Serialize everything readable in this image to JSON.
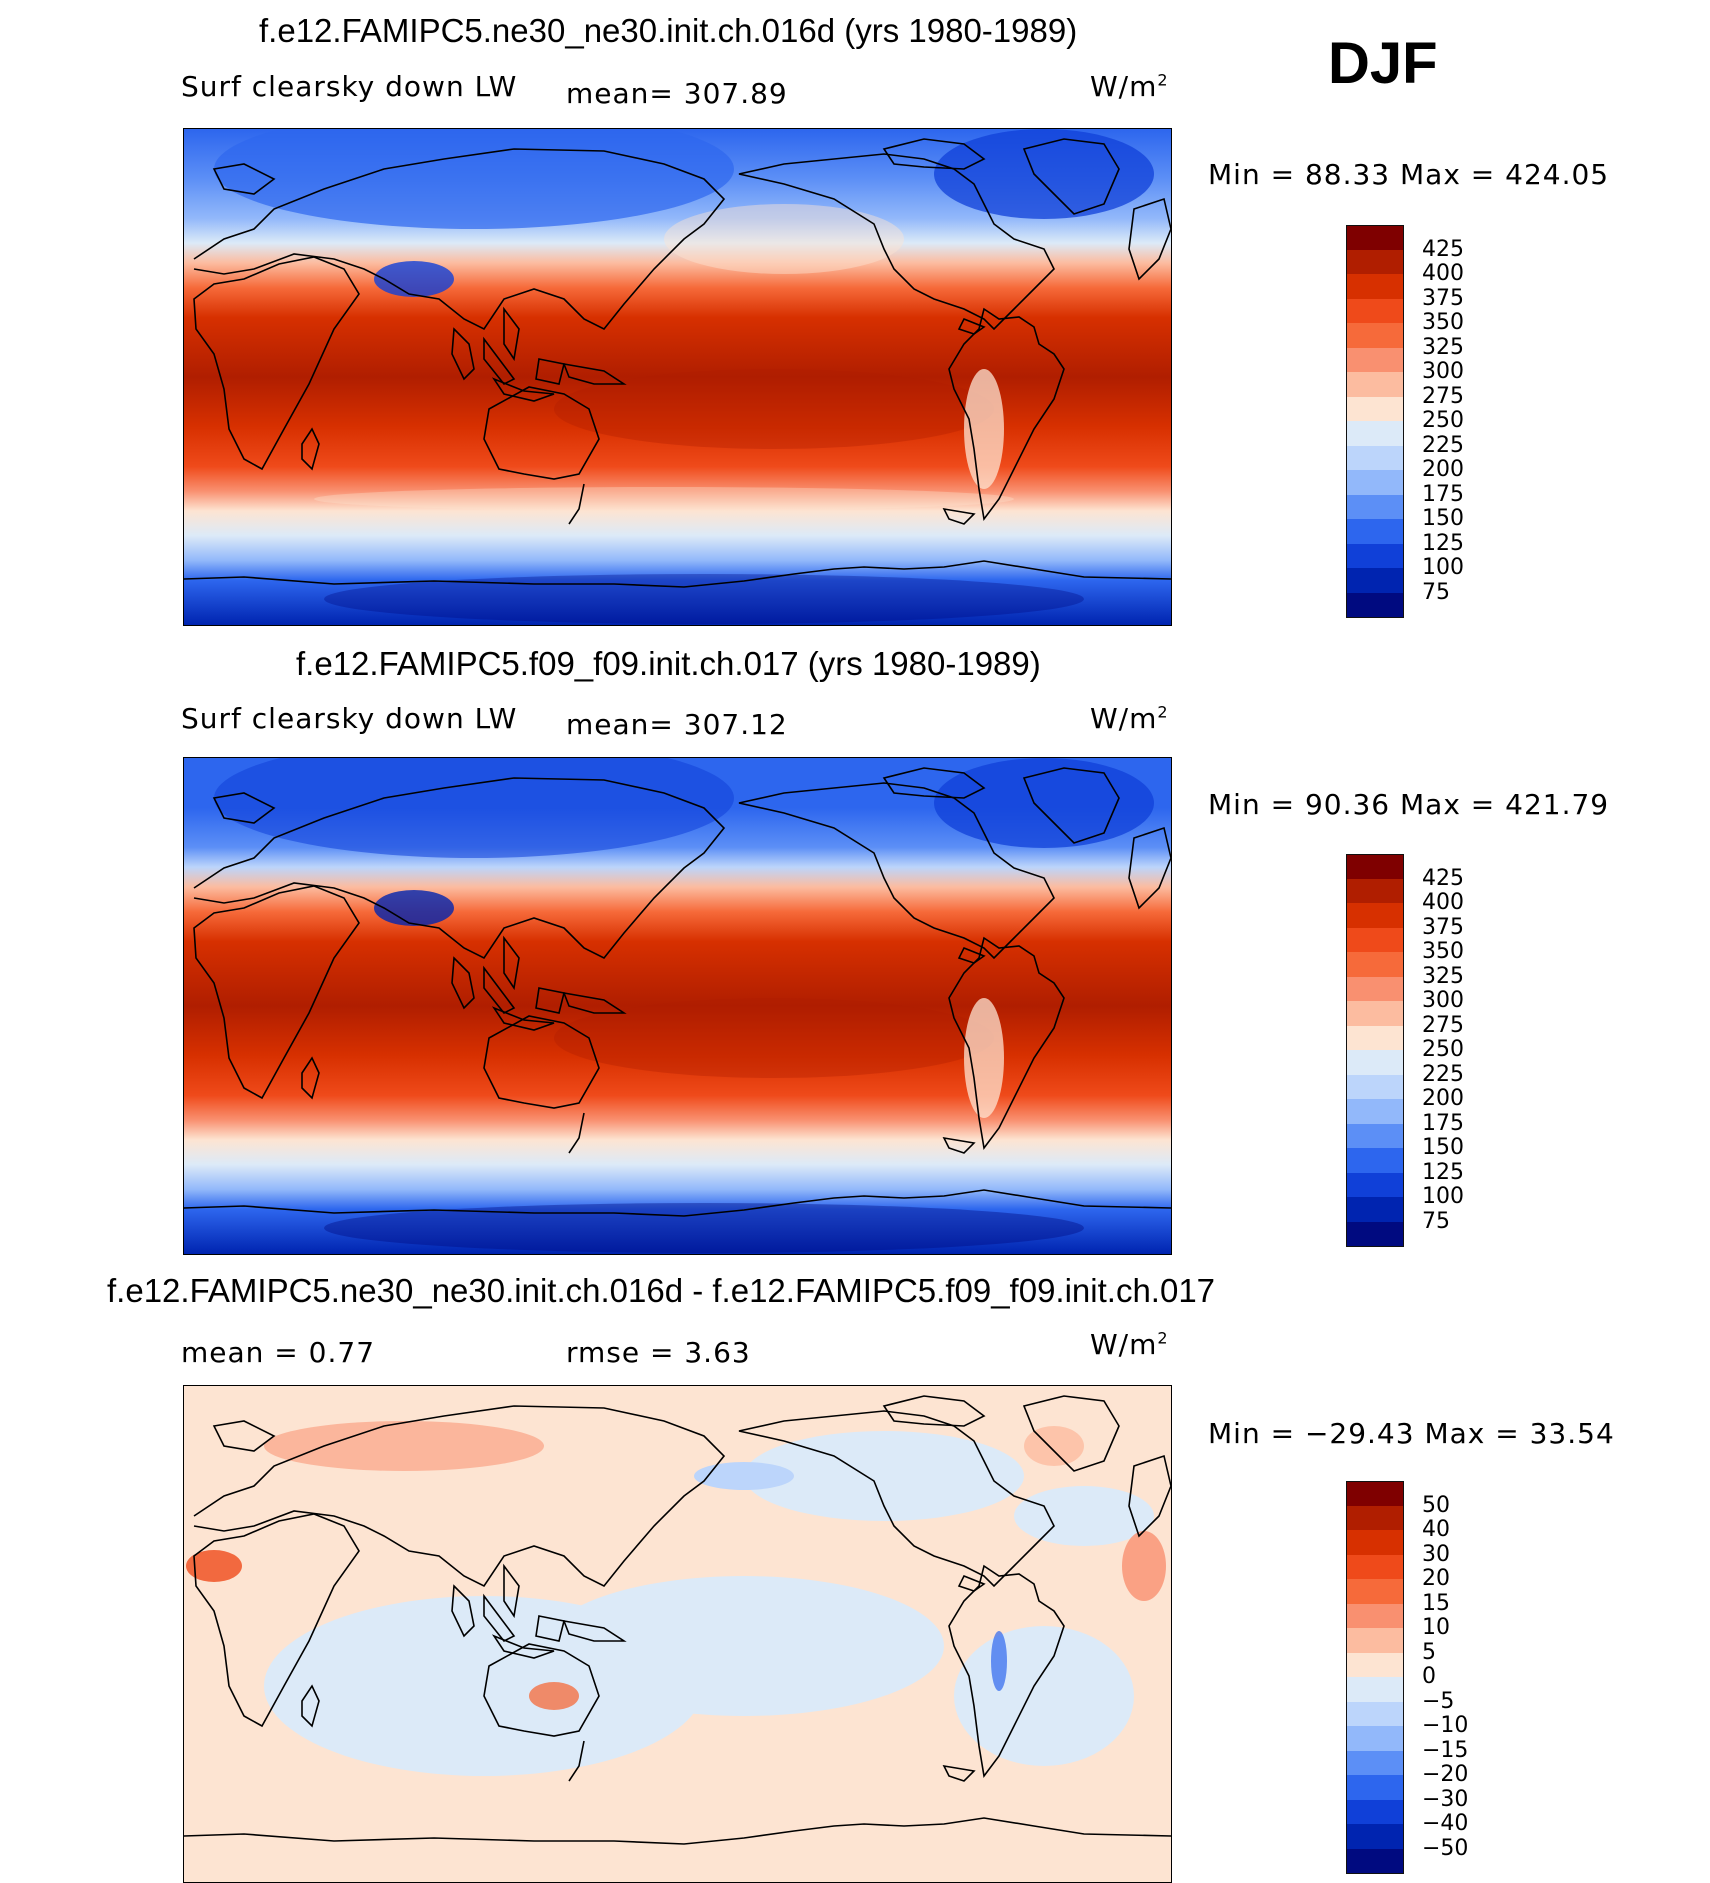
{
  "season": "DJF",
  "panels": [
    {
      "title": "f.e12.FAMIPC5.ne30_ne30.init.ch.016d (yrs 1980-1989)",
      "left_label": "Surf clearsky down LW",
      "center_label": "mean=  307.89",
      "units_base": "W/m",
      "units_exp": "2",
      "minmax": "Min =   88.33  Max =  424.05",
      "colorbar": {
        "labels": [
          "425",
          "400",
          "375",
          "350",
          "325",
          "300",
          "275",
          "250",
          "225",
          "200",
          "175",
          "150",
          "125",
          "100",
          "75"
        ],
        "colors": [
          "#7f0000",
          "#b01e00",
          "#d73000",
          "#ef4a1a",
          "#f66a3a",
          "#f99070",
          "#fcbca0",
          "#fde4d2",
          "#dceaf8",
          "#bcd5fb",
          "#92b8fa",
          "#5c8ff6",
          "#2d66ee",
          "#1040d8",
          "#0024b0",
          "#000a80"
        ]
      }
    },
    {
      "title": "f.e12.FAMIPC5.f09_f09.init.ch.017 (yrs 1980-1989)",
      "left_label": "Surf clearsky down LW",
      "center_label": "mean=  307.12",
      "units_base": "W/m",
      "units_exp": "2",
      "minmax": "Min =   90.36  Max =  421.79",
      "colorbar": {
        "labels": [
          "425",
          "400",
          "375",
          "350",
          "325",
          "300",
          "275",
          "250",
          "225",
          "200",
          "175",
          "150",
          "125",
          "100",
          "75"
        ],
        "colors": [
          "#7f0000",
          "#b01e00",
          "#d73000",
          "#ef4a1a",
          "#f66a3a",
          "#f99070",
          "#fcbca0",
          "#fde4d2",
          "#dceaf8",
          "#bcd5fb",
          "#92b8fa",
          "#5c8ff6",
          "#2d66ee",
          "#1040d8",
          "#0024b0",
          "#000a80"
        ]
      }
    },
    {
      "title": "f.e12.FAMIPC5.ne30_ne30.init.ch.016d - f.e12.FAMIPC5.f09_f09.init.ch.017",
      "left_label": "mean =     0.77",
      "center_label": "rmse =     3.63",
      "units_base": "W/m",
      "units_exp": "2",
      "minmax": "Min = −29.43  Max =   33.54",
      "colorbar": {
        "labels": [
          "50",
          "40",
          "30",
          "20",
          "15",
          "10",
          "5",
          "0",
          "−5",
          "−10",
          "−15",
          "−20",
          "−30",
          "−40",
          "−50"
        ],
        "colors": [
          "#7f0000",
          "#b01e00",
          "#d73000",
          "#ef4a1a",
          "#f66a3a",
          "#f99070",
          "#fcbca0",
          "#fde4d2",
          "#dceaf8",
          "#bcd5fb",
          "#92b8fa",
          "#5c8ff6",
          "#2d66ee",
          "#1040d8",
          "#0024b0",
          "#000a80"
        ]
      }
    }
  ],
  "chart_data": [
    {
      "type": "heatmap",
      "title": "f.e12.FAMIPC5.ne30_ne30.init.ch.016d (yrs 1980-1989)",
      "variable": "Surf clearsky down LW",
      "units": "W/m2",
      "season": "DJF",
      "mean": 307.89,
      "min": 88.33,
      "max": 424.05,
      "contour_levels": [
        75,
        100,
        125,
        150,
        175,
        200,
        225,
        250,
        275,
        300,
        325,
        350,
        375,
        400,
        425
      ],
      "projection": "cylindrical equidistant, Pacific-centered"
    },
    {
      "type": "heatmap",
      "title": "f.e12.FAMIPC5.f09_f09.init.ch.017 (yrs 1980-1989)",
      "variable": "Surf clearsky down LW",
      "units": "W/m2",
      "season": "DJF",
      "mean": 307.12,
      "min": 90.36,
      "max": 421.79,
      "contour_levels": [
        75,
        100,
        125,
        150,
        175,
        200,
        225,
        250,
        275,
        300,
        325,
        350,
        375,
        400,
        425
      ],
      "projection": "cylindrical equidistant, Pacific-centered"
    },
    {
      "type": "heatmap",
      "title": "f.e12.FAMIPC5.ne30_ne30.init.ch.016d - f.e12.FAMIPC5.f09_f09.init.ch.017",
      "units": "W/m2",
      "season": "DJF",
      "mean": 0.77,
      "rmse": 3.63,
      "min": -29.43,
      "max": 33.54,
      "contour_levels": [
        -50,
        -40,
        -30,
        -20,
        -15,
        -10,
        -5,
        0,
        5,
        10,
        15,
        20,
        30,
        40,
        50
      ],
      "projection": "cylindrical equidistant, Pacific-centered"
    }
  ]
}
